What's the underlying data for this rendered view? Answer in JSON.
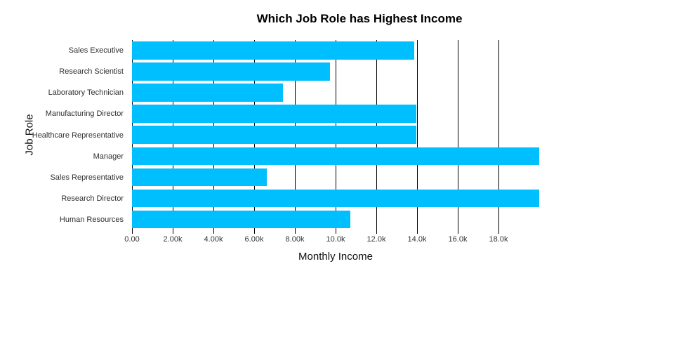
{
  "chart_data": {
    "type": "bar",
    "orientation": "horizontal",
    "title": "Which Job Role has Highest Income",
    "xlabel": "Monthly Income",
    "ylabel": "Job Role",
    "categories": [
      "Sales Executive",
      "Research Scientist",
      "Laboratory Technician",
      "Manufacturing Director",
      "Healthcare Representative",
      "Manager",
      "Sales Representative",
      "Research Director",
      "Human Resources"
    ],
    "values": [
      13872,
      9724,
      7403,
      13973,
      13966,
      19999,
      6632,
      19999,
      10725
    ],
    "xlim": [
      0,
      19999
    ],
    "x_ticks": [
      {
        "value": 0,
        "label": "0.00"
      },
      {
        "value": 2000,
        "label": "2.00k"
      },
      {
        "value": 4000,
        "label": "4.00k"
      },
      {
        "value": 6000,
        "label": "6.00k"
      },
      {
        "value": 8000,
        "label": "8.00k"
      },
      {
        "value": 10000,
        "label": "10.0k"
      },
      {
        "value": 12000,
        "label": "12.0k"
      },
      {
        "value": 14000,
        "label": "14.0k"
      },
      {
        "value": 16000,
        "label": "16.0k"
      },
      {
        "value": 18000,
        "label": "18.0k"
      }
    ],
    "bar_color": "#00BFFF",
    "gridline_color": "#000000",
    "tick_color": "#000000",
    "background": "#ffffff",
    "grid": "vertical",
    "legend": "none"
  }
}
